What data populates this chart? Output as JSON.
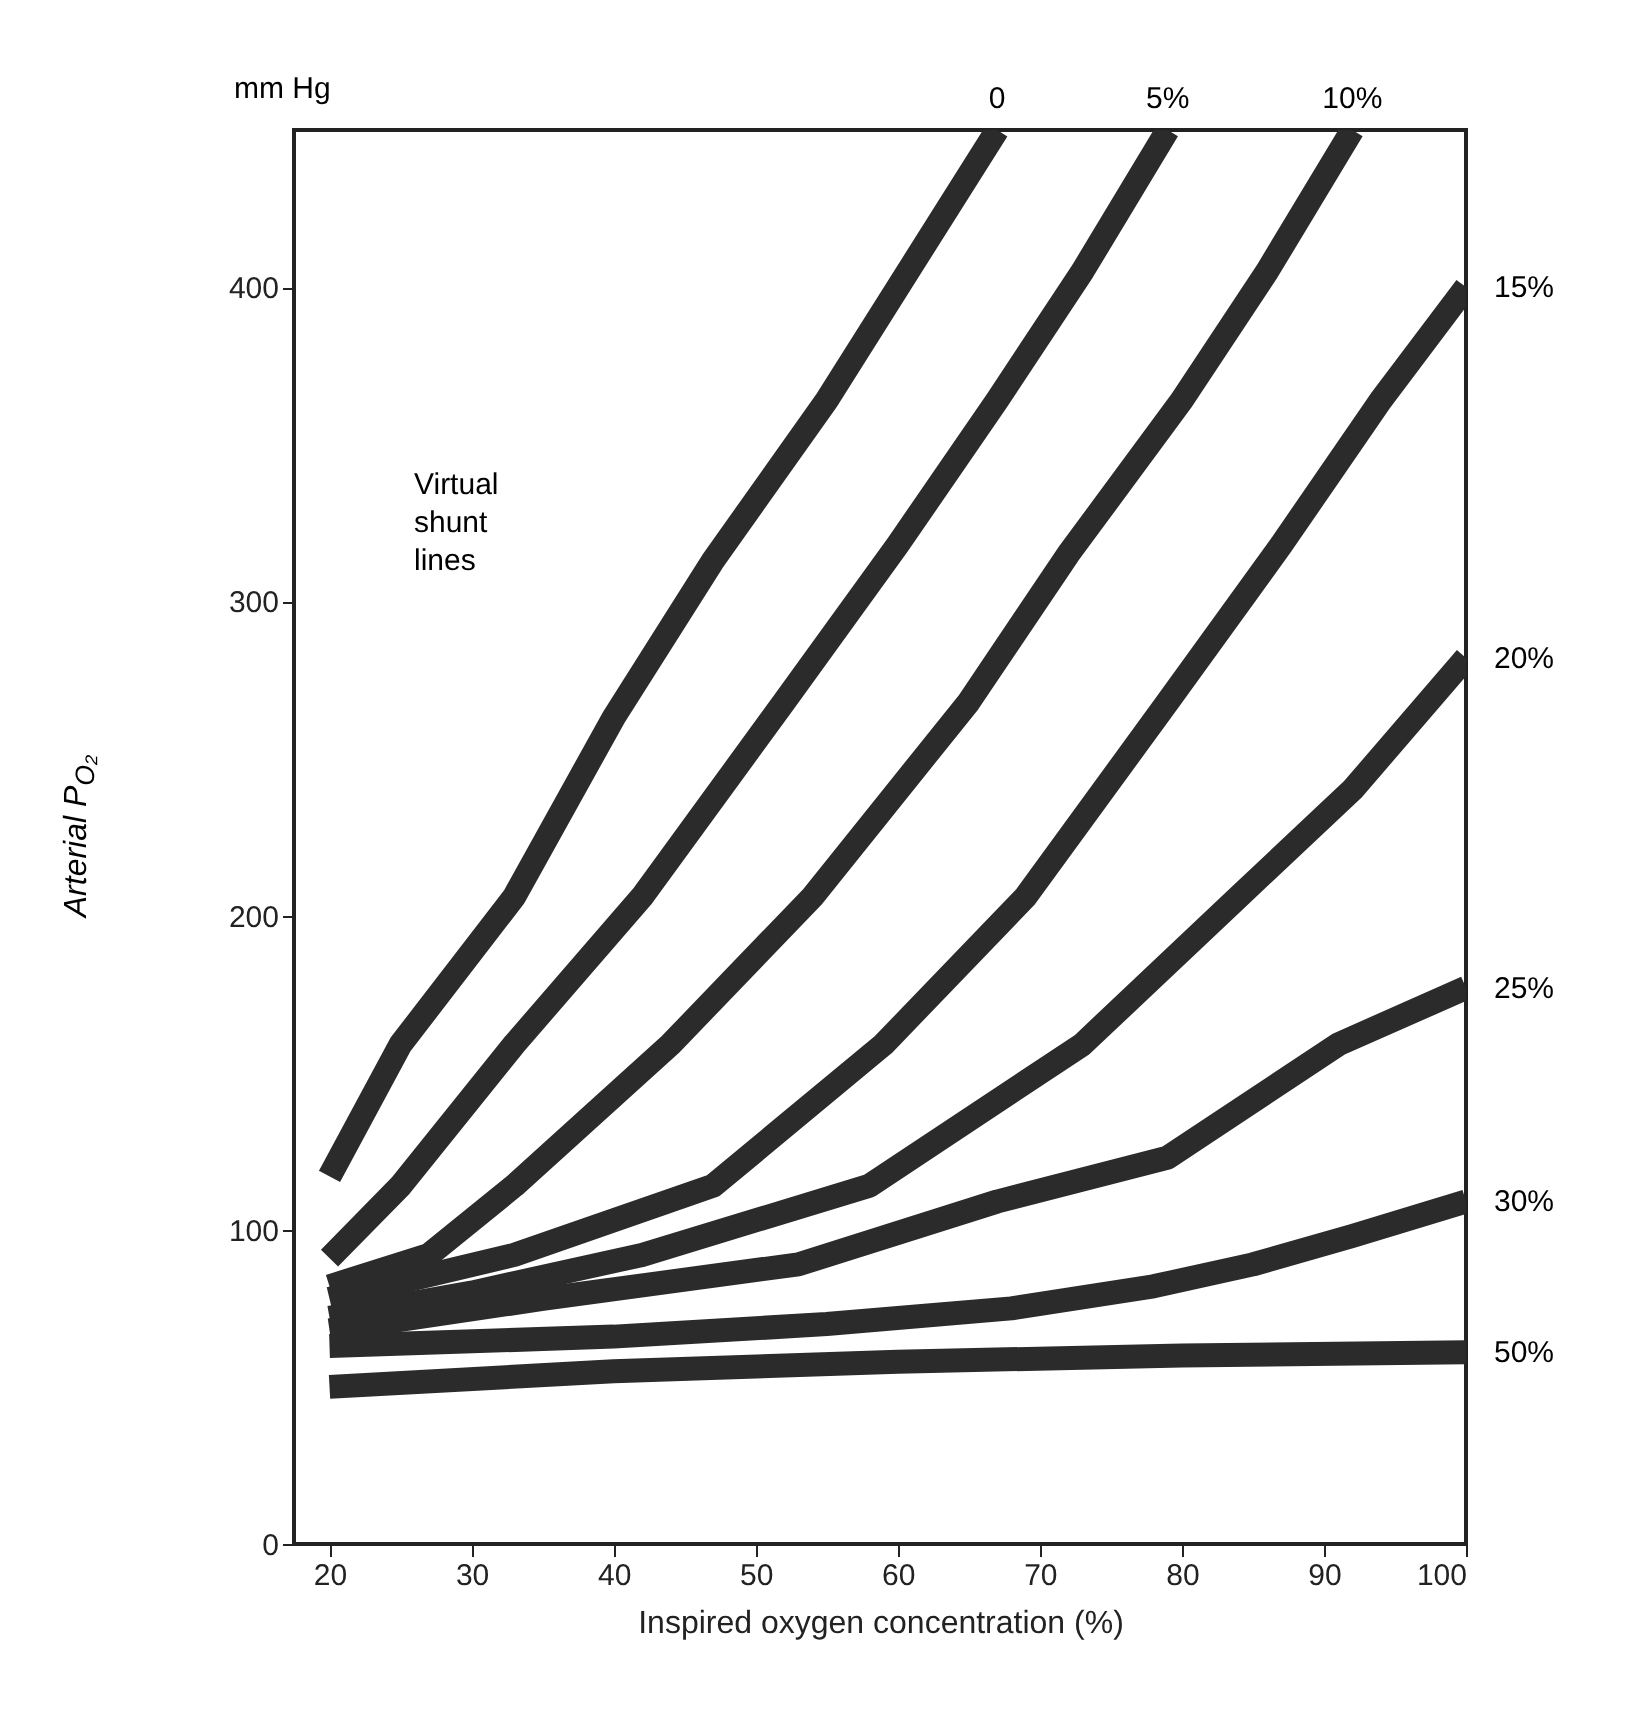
{
  "chart_data": {
    "type": "line",
    "xlabel": "Inspired oxygen concentration (%)",
    "ylabel": "Arterial P$_{O₂}$",
    "annotations": [
      "mm Hg",
      "Virtual shunt lines"
    ],
    "xlim": [
      17.5,
      100
    ],
    "ylim": [
      0,
      450
    ],
    "xticks": [
      20,
      30,
      40,
      50,
      60,
      70,
      80,
      90,
      100
    ],
    "yticks": [
      0,
      100,
      200,
      300,
      400
    ],
    "series": [
      {
        "name": "0",
        "color": "#2b2b2b",
        "x": [
          20,
          25,
          33,
          40,
          47,
          55,
          61,
          67
        ],
        "values": [
          117,
          159,
          206,
          263,
          313,
          364,
          407,
          450
        ]
      },
      {
        "name": "5%",
        "color": "#2b2b2b",
        "x": [
          20,
          25,
          33,
          42,
          52,
          60,
          67,
          73,
          79
        ],
        "values": [
          91,
          114,
          159,
          206,
          268,
          318,
          364,
          405,
          450
        ]
      },
      {
        "name": "10%",
        "color": "#2b2b2b",
        "x": [
          20,
          27,
          33,
          44,
          54,
          65,
          72,
          80,
          86,
          92
        ],
        "values": [
          82,
          92,
          114,
          159,
          206,
          268,
          315,
          364,
          405,
          450
        ]
      },
      {
        "name": "15%",
        "color": "#2b2b2b",
        "x": [
          20,
          33,
          47,
          59,
          69,
          79,
          87,
          94,
          100
        ],
        "values": [
          78,
          92,
          114,
          159,
          206,
          268,
          318,
          364,
          400
        ]
      },
      {
        "name": "20%",
        "color": "#2b2b2b",
        "x": [
          20,
          30,
          42,
          58,
          73,
          84,
          92,
          100
        ],
        "values": [
          72,
          80,
          92,
          114,
          159,
          206,
          240,
          282
        ]
      },
      {
        "name": "25%",
        "color": "#2b2b2b",
        "x": [
          20,
          35,
          53,
          67,
          79,
          91,
          100
        ],
        "values": [
          68,
          78,
          89,
          109,
          123,
          159,
          177
        ]
      },
      {
        "name": "30%",
        "color": "#2b2b2b",
        "x": [
          20,
          40,
          55,
          68,
          78,
          85,
          92,
          100
        ],
        "values": [
          63,
          66,
          70,
          75,
          82,
          89,
          98,
          109
        ]
      },
      {
        "name": "50%",
        "color": "#2b2b2b",
        "x": [
          20,
          40,
          60,
          80,
          100
        ],
        "values": [
          50,
          55,
          58,
          60,
          61
        ]
      }
    ]
  }
}
